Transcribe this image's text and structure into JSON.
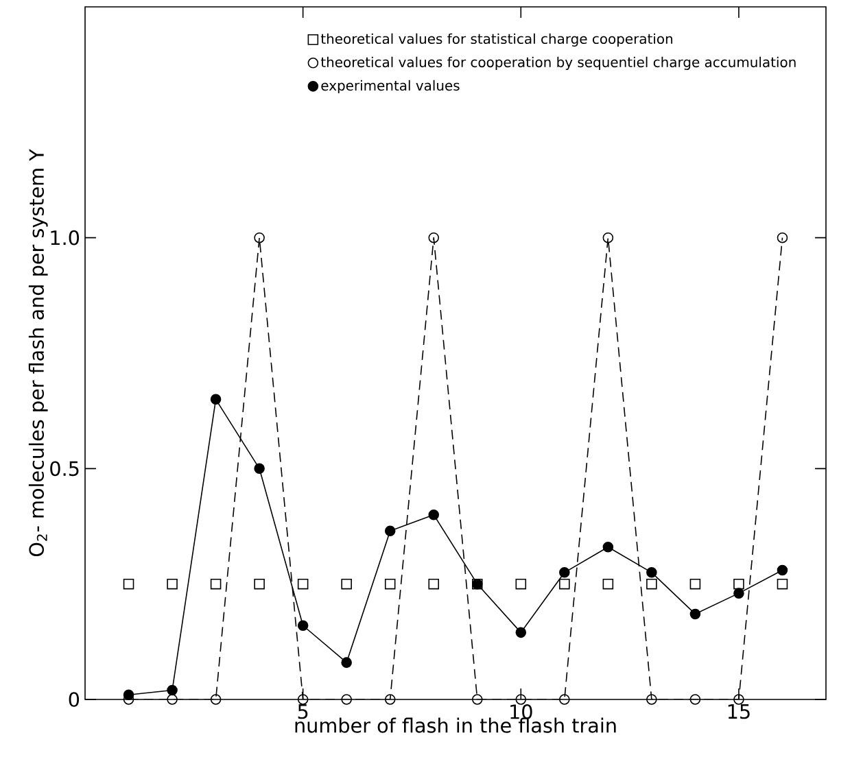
{
  "chart_data": {
    "type": "line",
    "xlabel": "number of flash in the flash train",
    "ylabel": "O$_{2}$- molecules per flash and per system Y",
    "x": [
      1,
      2,
      3,
      4,
      5,
      6,
      7,
      8,
      9,
      10,
      11,
      12,
      13,
      14,
      15,
      16
    ],
    "xlim": [
      0,
      17
    ],
    "ylim": [
      0,
      1.5
    ],
    "xticks": [
      5,
      10,
      15
    ],
    "yticks": [
      {
        "value": 0,
        "label": "0"
      },
      {
        "value": 0.5,
        "label": "0.5"
      },
      {
        "value": 1.0,
        "label": "1.0"
      }
    ],
    "legend": "top right",
    "grid": false,
    "series": [
      {
        "name": "theoretical values for statistical charge cooperation",
        "type": "scatter",
        "marker": "square",
        "color": "#000000",
        "values": [
          0.25,
          0.25,
          0.25,
          0.25,
          0.25,
          0.25,
          0.25,
          0.25,
          0.25,
          0.25,
          0.25,
          0.25,
          0.25,
          0.25,
          0.25,
          0.25
        ]
      },
      {
        "name": "theoretical values for cooperation by sequentiel charge accumulation",
        "marker": "circle",
        "line_style": "dashed",
        "color": "#000000",
        "values": [
          0,
          0,
          0,
          1,
          0,
          0,
          0,
          1,
          0,
          0,
          0,
          1,
          0,
          0,
          0,
          1
        ]
      },
      {
        "name": "experimental values",
        "marker": "circle*",
        "line_style": "solid",
        "color": "#000000",
        "values": [
          0.01,
          0.02,
          0.65,
          0.5,
          0.16,
          0.08,
          0.365,
          0.4,
          0.25,
          0.145,
          0.275,
          0.33,
          0.275,
          0.185,
          0.23,
          0.28
        ]
      }
    ]
  }
}
